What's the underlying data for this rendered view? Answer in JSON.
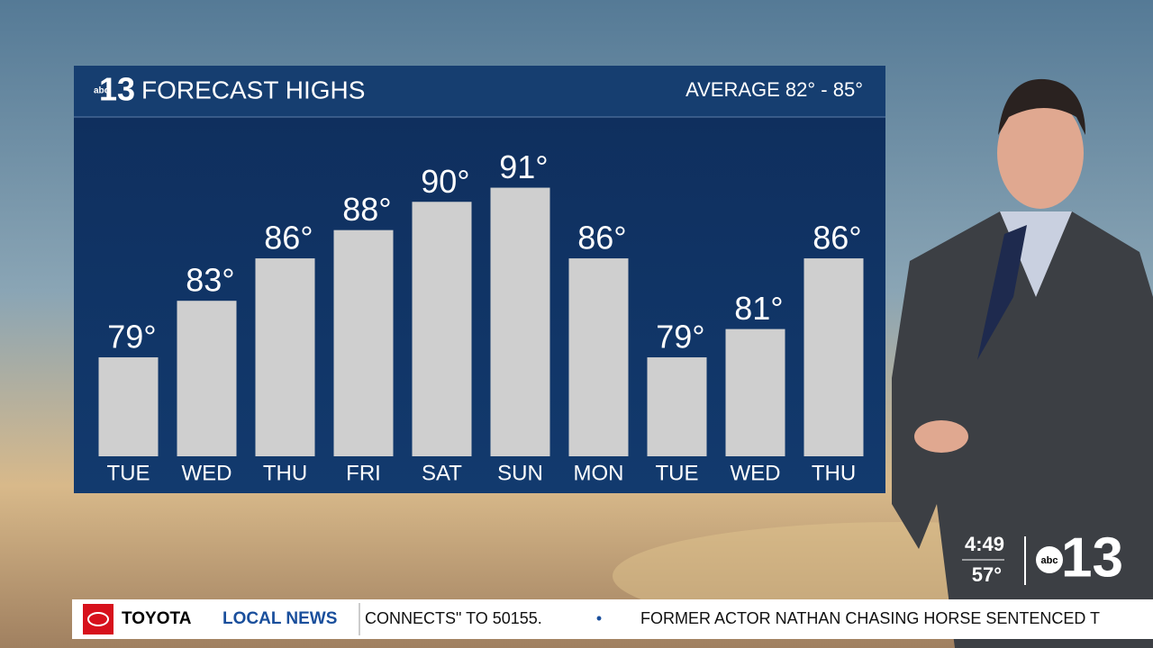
{
  "chart_data": {
    "type": "bar",
    "title": "FORECAST HIGHS",
    "subtitle": "AVERAGE 82° - 85°",
    "categories": [
      "TUE",
      "WED",
      "THU",
      "FRI",
      "SAT",
      "SUN",
      "MON",
      "TUE",
      "WED",
      "THU"
    ],
    "values": [
      79,
      83,
      86,
      88,
      90,
      91,
      86,
      79,
      81,
      86
    ],
    "value_labels": [
      "79°",
      "83°",
      "86°",
      "88°",
      "90°",
      "91°",
      "86°",
      "79°",
      "81°",
      "86°"
    ],
    "color": "#cfcfcf",
    "ylim": [
      72,
      96
    ]
  },
  "logo": {
    "network": "abc",
    "channel": "13"
  },
  "clock": {
    "time": "4:49",
    "temperature": "57°"
  },
  "ticker": {
    "sponsor": "TOYOTA",
    "section": "LOCAL NEWS",
    "items": [
      "CONNECTS\" TO 50155.",
      "•",
      "FORMER ACTOR NATHAN CHASING HORSE SENTENCED T"
    ]
  }
}
